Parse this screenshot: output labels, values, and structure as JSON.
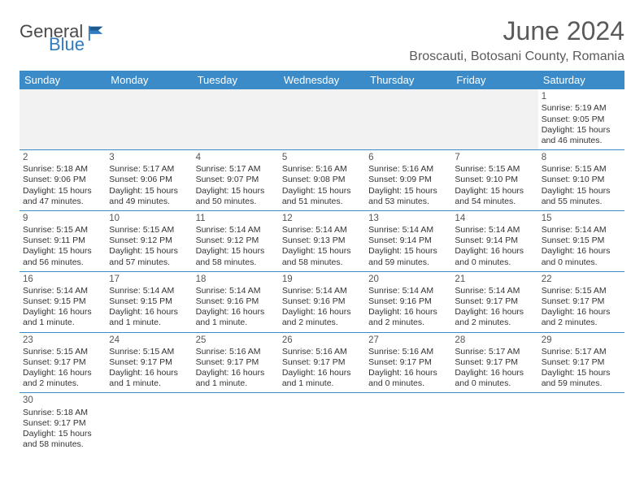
{
  "brand": {
    "general": "General",
    "blue": "Blue"
  },
  "title": "June 2024",
  "location": "Broscauti, Botosani County, Romania",
  "colors": {
    "header_bg": "#3b8bc9",
    "header_text": "#ffffff",
    "border": "#3b8bc9",
    "empty_bg": "#f2f2f2",
    "text": "#333333",
    "title_text": "#5a5a5a"
  },
  "weekdays": [
    "Sunday",
    "Monday",
    "Tuesday",
    "Wednesday",
    "Thursday",
    "Friday",
    "Saturday"
  ],
  "leading_empty": 6,
  "days": [
    {
      "n": "1",
      "sunrise": "5:19 AM",
      "sunset": "9:05 PM",
      "daylight": "15 hours and 46 minutes."
    },
    {
      "n": "2",
      "sunrise": "5:18 AM",
      "sunset": "9:06 PM",
      "daylight": "15 hours and 47 minutes."
    },
    {
      "n": "3",
      "sunrise": "5:17 AM",
      "sunset": "9:06 PM",
      "daylight": "15 hours and 49 minutes."
    },
    {
      "n": "4",
      "sunrise": "5:17 AM",
      "sunset": "9:07 PM",
      "daylight": "15 hours and 50 minutes."
    },
    {
      "n": "5",
      "sunrise": "5:16 AM",
      "sunset": "9:08 PM",
      "daylight": "15 hours and 51 minutes."
    },
    {
      "n": "6",
      "sunrise": "5:16 AM",
      "sunset": "9:09 PM",
      "daylight": "15 hours and 53 minutes."
    },
    {
      "n": "7",
      "sunrise": "5:15 AM",
      "sunset": "9:10 PM",
      "daylight": "15 hours and 54 minutes."
    },
    {
      "n": "8",
      "sunrise": "5:15 AM",
      "sunset": "9:10 PM",
      "daylight": "15 hours and 55 minutes."
    },
    {
      "n": "9",
      "sunrise": "5:15 AM",
      "sunset": "9:11 PM",
      "daylight": "15 hours and 56 minutes."
    },
    {
      "n": "10",
      "sunrise": "5:15 AM",
      "sunset": "9:12 PM",
      "daylight": "15 hours and 57 minutes."
    },
    {
      "n": "11",
      "sunrise": "5:14 AM",
      "sunset": "9:12 PM",
      "daylight": "15 hours and 58 minutes."
    },
    {
      "n": "12",
      "sunrise": "5:14 AM",
      "sunset": "9:13 PM",
      "daylight": "15 hours and 58 minutes."
    },
    {
      "n": "13",
      "sunrise": "5:14 AM",
      "sunset": "9:14 PM",
      "daylight": "15 hours and 59 minutes."
    },
    {
      "n": "14",
      "sunrise": "5:14 AM",
      "sunset": "9:14 PM",
      "daylight": "16 hours and 0 minutes."
    },
    {
      "n": "15",
      "sunrise": "5:14 AM",
      "sunset": "9:15 PM",
      "daylight": "16 hours and 0 minutes."
    },
    {
      "n": "16",
      "sunrise": "5:14 AM",
      "sunset": "9:15 PM",
      "daylight": "16 hours and 1 minute."
    },
    {
      "n": "17",
      "sunrise": "5:14 AM",
      "sunset": "9:15 PM",
      "daylight": "16 hours and 1 minute."
    },
    {
      "n": "18",
      "sunrise": "5:14 AM",
      "sunset": "9:16 PM",
      "daylight": "16 hours and 1 minute."
    },
    {
      "n": "19",
      "sunrise": "5:14 AM",
      "sunset": "9:16 PM",
      "daylight": "16 hours and 2 minutes."
    },
    {
      "n": "20",
      "sunrise": "5:14 AM",
      "sunset": "9:16 PM",
      "daylight": "16 hours and 2 minutes."
    },
    {
      "n": "21",
      "sunrise": "5:14 AM",
      "sunset": "9:17 PM",
      "daylight": "16 hours and 2 minutes."
    },
    {
      "n": "22",
      "sunrise": "5:15 AM",
      "sunset": "9:17 PM",
      "daylight": "16 hours and 2 minutes."
    },
    {
      "n": "23",
      "sunrise": "5:15 AM",
      "sunset": "9:17 PM",
      "daylight": "16 hours and 2 minutes."
    },
    {
      "n": "24",
      "sunrise": "5:15 AM",
      "sunset": "9:17 PM",
      "daylight": "16 hours and 1 minute."
    },
    {
      "n": "25",
      "sunrise": "5:16 AM",
      "sunset": "9:17 PM",
      "daylight": "16 hours and 1 minute."
    },
    {
      "n": "26",
      "sunrise": "5:16 AM",
      "sunset": "9:17 PM",
      "daylight": "16 hours and 1 minute."
    },
    {
      "n": "27",
      "sunrise": "5:16 AM",
      "sunset": "9:17 PM",
      "daylight": "16 hours and 0 minutes."
    },
    {
      "n": "28",
      "sunrise": "5:17 AM",
      "sunset": "9:17 PM",
      "daylight": "16 hours and 0 minutes."
    },
    {
      "n": "29",
      "sunrise": "5:17 AM",
      "sunset": "9:17 PM",
      "daylight": "15 hours and 59 minutes."
    },
    {
      "n": "30",
      "sunrise": "5:18 AM",
      "sunset": "9:17 PM",
      "daylight": "15 hours and 58 minutes."
    }
  ],
  "labels": {
    "sunrise": "Sunrise: ",
    "sunset": "Sunset: ",
    "daylight": "Daylight: "
  }
}
